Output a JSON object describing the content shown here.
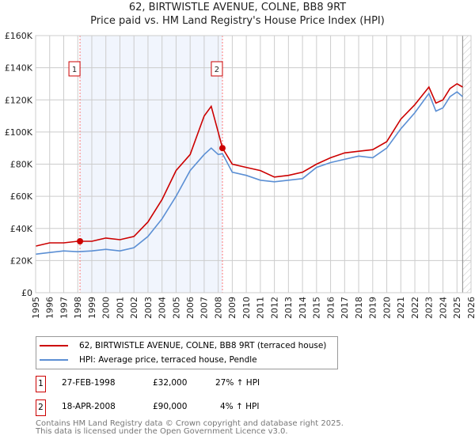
{
  "title": "62, BIRTWISTLE AVENUE, COLNE, BB8 9RT",
  "subtitle": "Price paid vs. HM Land Registry's House Price Index (HPI)",
  "chart_data": {
    "type": "line",
    "title": "62, BIRTWISTLE AVENUE, COLNE, BB8 9RT",
    "subtitle": "Price paid vs. HM Land Registry's House Price Index (HPI)",
    "xlim": [
      1995,
      2026
    ],
    "ylim": [
      0,
      160000
    ],
    "x_ticks": [
      "1995",
      "1996",
      "1997",
      "1998",
      "1999",
      "2000",
      "2001",
      "2002",
      "2003",
      "2004",
      "2005",
      "2006",
      "2007",
      "2008",
      "2009",
      "2010",
      "2011",
      "2012",
      "2013",
      "2014",
      "2015",
      "2016",
      "2017",
      "2018",
      "2019",
      "2020",
      "2021",
      "2022",
      "2023",
      "2024",
      "2025",
      "2026"
    ],
    "y_ticks": [
      {
        "v": 0,
        "label": "£0"
      },
      {
        "v": 20000,
        "label": "£20K"
      },
      {
        "v": 40000,
        "label": "£40K"
      },
      {
        "v": 60000,
        "label": "£60K"
      },
      {
        "v": 80000,
        "label": "£80K"
      },
      {
        "v": 100000,
        "label": "£100K"
      },
      {
        "v": 120000,
        "label": "£120K"
      },
      {
        "v": 140000,
        "label": "£140K"
      },
      {
        "v": 160000,
        "label": "£160K"
      }
    ],
    "grid": true,
    "series": [
      {
        "name": "62, BIRTWISTLE AVENUE, COLNE, BB8 9RT (terraced house)",
        "color": "#cc0000",
        "x": [
          1995,
          1996,
          1997,
          1998,
          1999,
          2000,
          2001,
          2002,
          2003,
          2004,
          2005,
          2006,
          2007,
          2007.5,
          2008,
          2008.3,
          2009,
          2010,
          2011,
          2012,
          2013,
          2014,
          2015,
          2016,
          2017,
          2018,
          2019,
          2020,
          2021,
          2022,
          2023,
          2023.5,
          2024,
          2024.5,
          2025,
          2025.4
        ],
        "y": [
          29000,
          31000,
          31000,
          32000,
          32000,
          34000,
          33000,
          35000,
          44000,
          58000,
          76000,
          86000,
          110000,
          116000,
          100000,
          90000,
          80000,
          78000,
          76000,
          72000,
          73000,
          75000,
          80000,
          84000,
          87000,
          88000,
          89000,
          94000,
          108000,
          117000,
          128000,
          118000,
          120000,
          127000,
          130000,
          128000
        ]
      },
      {
        "name": "HPI: Average price, terraced house, Pendle",
        "color": "#5b8fd4",
        "x": [
          1995,
          1996,
          1997,
          1998,
          1999,
          2000,
          2001,
          2002,
          2003,
          2004,
          2005,
          2006,
          2007,
          2007.5,
          2008,
          2008.3,
          2009,
          2010,
          2011,
          2012,
          2013,
          2014,
          2015,
          2016,
          2017,
          2018,
          2019,
          2020,
          2021,
          2022,
          2023,
          2023.5,
          2024,
          2024.5,
          2025,
          2025.4
        ],
        "y": [
          24000,
          25000,
          26000,
          25500,
          26000,
          27000,
          26000,
          28000,
          35000,
          46000,
          60000,
          76000,
          86000,
          90000,
          86000,
          86500,
          75000,
          73000,
          70000,
          69000,
          70000,
          71000,
          78000,
          81000,
          83000,
          85000,
          84000,
          90000,
          102000,
          112000,
          124000,
          113000,
          115000,
          122000,
          125000,
          122000
        ]
      }
    ],
    "sales": [
      {
        "label": "1",
        "x": 1998.16,
        "y": 32000,
        "date": "27-FEB-1998",
        "price": "£32,000",
        "hpi": "27% ↑ HPI"
      },
      {
        "label": "2",
        "x": 2008.3,
        "y": 90000,
        "date": "18-APR-2008",
        "price": "£90,000",
        "hpi": "4% ↑ HPI"
      }
    ],
    "forecast_start": 2025.4,
    "legend_placement": "below"
  },
  "legend": {
    "items": [
      "62, BIRTWISTLE AVENUE, COLNE, BB8 9RT (terraced house)",
      "HPI: Average price, terraced house, Pendle"
    ]
  },
  "footer": [
    "Contains HM Land Registry data © Crown copyright and database right 2025.",
    "This data is licensed under the Open Government Licence v3.0."
  ]
}
